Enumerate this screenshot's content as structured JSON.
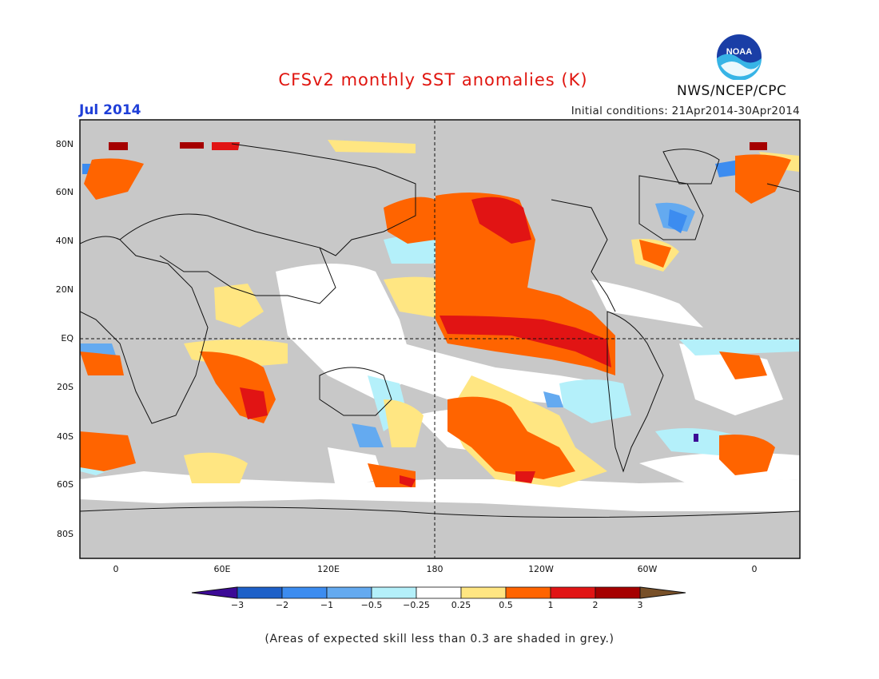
{
  "title": "CFSv2 monthly SST anomalies (K)",
  "month": "Jul 2014",
  "initial_conditions": "Initial conditions: 21Apr2014-30Apr2014",
  "agency": "NWS/NCEP/CPC",
  "logo_text": "NOAA",
  "note": "(Areas of expected skill less than 0.3 are shaded in grey.)",
  "lat_ticks": [
    "80N",
    "60N",
    "40N",
    "20N",
    "EQ",
    "20S",
    "40S",
    "60S",
    "80S"
  ],
  "lon_ticks": [
    "0",
    "60E",
    "120E",
    "180",
    "120W",
    "60W",
    "0"
  ],
  "colorbar": {
    "labels": [
      "−3",
      "−2",
      "−1",
      "−0.5",
      "−0.25",
      "0.25",
      "0.5",
      "1",
      "2",
      "3"
    ],
    "colors": [
      "#3c0a96",
      "#1e60c8",
      "#3c8cf0",
      "#64aaf0",
      "#b4f0fa",
      "#ffffff",
      "#ffe682",
      "#ff6400",
      "#e11414",
      "#a50000",
      "#785028"
    ]
  },
  "map_colors": {
    "land": "#c8c8c8",
    "skill_mask": "#c8c8c8",
    "ocean_neutral": "#ffffff"
  }
}
